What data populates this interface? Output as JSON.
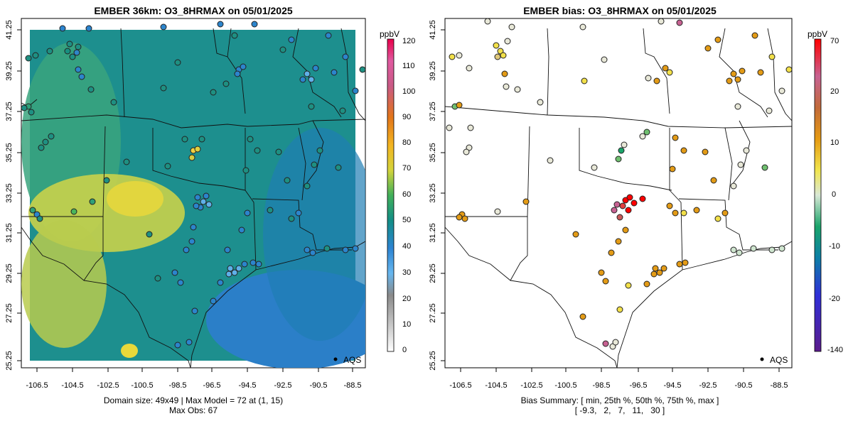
{
  "left_panel": {
    "title": "EMBER 36km: O3_8HRMAX on 05/01/2025",
    "colorbar_unit": "ppbV",
    "colorbar_ticks": [
      "0",
      "10",
      "20",
      "30",
      "40",
      "50",
      "60",
      "70",
      "80",
      "90",
      "100",
      "110",
      "120"
    ],
    "x_ticks": [
      "-106.5",
      "-104.5",
      "-102.5",
      "-100.5",
      "-98.5",
      "-96.5",
      "-94.5",
      "-92.5",
      "-90.5",
      "-88.5"
    ],
    "y_ticks": [
      "25.25",
      "27.25",
      "29.25",
      "31.25",
      "33.25",
      "35.25",
      "37.25",
      "39.25",
      "41.25"
    ],
    "legend_label": "AQS",
    "caption_line1": "Domain size: 49x49 | Max Model = 72 at (1, 15)",
    "caption_line2": "Max Obs: 67"
  },
  "right_panel": {
    "title": "EMBER bias: O3_8HRMAX on 05/01/2025",
    "colorbar_unit": "ppbV",
    "colorbar_ticks": [
      "-140",
      "-20",
      "-10",
      "0",
      "10",
      "20",
      "70"
    ],
    "x_ticks": [
      "-106.5",
      "-104.5",
      "-102.5",
      "-100.5",
      "-98.5",
      "-96.5",
      "-94.5",
      "-92.5",
      "-90.5",
      "-88.5"
    ],
    "y_ticks": [
      "25.25",
      "27.25",
      "29.25",
      "31.25",
      "33.25",
      "35.25",
      "37.25",
      "39.25",
      "41.25"
    ],
    "legend_label": "AQS",
    "caption_line1": "Bias Summary: [ min, 25th %, 50th %, 75th %, max ]",
    "caption_line2": "[ -9.3,   2,   7,   11,   30 ]"
  },
  "colors": {
    "conc_ramp": [
      "#dcdcdc",
      "#9a9a9a",
      "#5fb0e8",
      "#2b86d3",
      "#1f78b4",
      "#0f8b8d",
      "#1fa37a",
      "#5bbf5b",
      "#e0d53e",
      "#f0a21c",
      "#e26a1a",
      "#d23b6e",
      "#e8006a"
    ],
    "bias_ramp": [
      "#6a1b9a",
      "#3344cc",
      "#1a9a9a",
      "#cfe5cf",
      "#f2e04a",
      "#e38b16",
      "#c85a8a",
      "#ff0000"
    ]
  }
}
